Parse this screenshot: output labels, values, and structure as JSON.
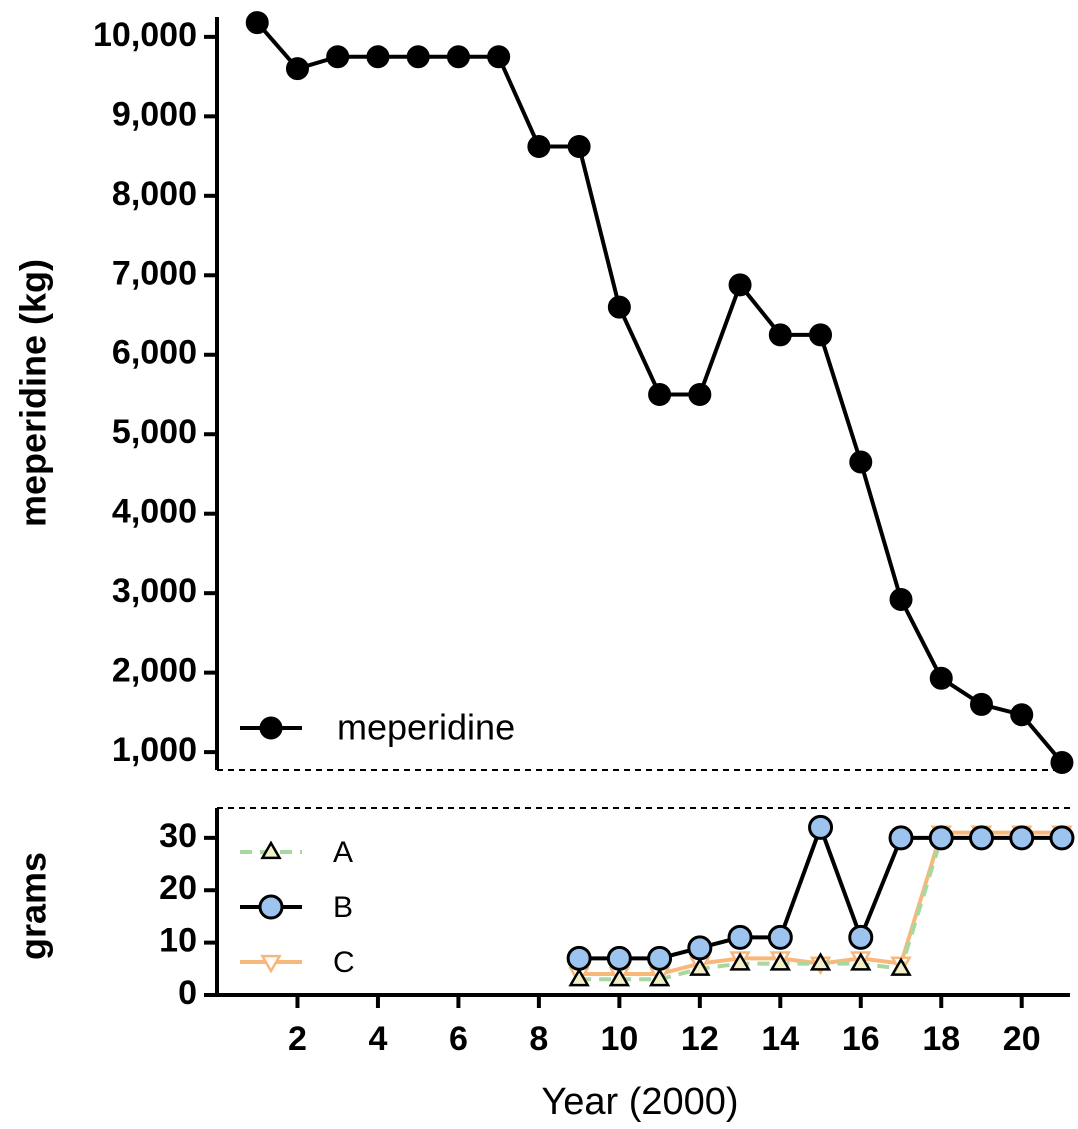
{
  "chart_data": [
    {
      "type": "line",
      "ylabel": "meperidine (kg)",
      "xlim": [
        0,
        21.2
      ],
      "ylim": [
        775,
        10250
      ],
      "yticks": [
        {
          "value": 1000,
          "label": "1,000"
        },
        {
          "value": 2000,
          "label": "2,000"
        },
        {
          "value": 3000,
          "label": "3,000"
        },
        {
          "value": 4000,
          "label": "4,000"
        },
        {
          "value": 5000,
          "label": "5,000"
        },
        {
          "value": 6000,
          "label": "6,000"
        },
        {
          "value": 7000,
          "label": "7,000"
        },
        {
          "value": 8000,
          "label": "8,000"
        },
        {
          "value": 9000,
          "label": "9,000"
        },
        {
          "value": 10000,
          "label": "10,000"
        }
      ],
      "legend": "lower left",
      "series": [
        {
          "name": "meperidine",
          "color": "#000000",
          "marker": "circle",
          "marker_color": "#000000",
          "line_style": "solid",
          "x": [
            1,
            2,
            3,
            4,
            5,
            6,
            7,
            8,
            9,
            10,
            11,
            12,
            13,
            14,
            15,
            16,
            17,
            18,
            19,
            20,
            21
          ],
          "values": [
            10180,
            9600,
            9750,
            9750,
            9750,
            9750,
            9750,
            8620,
            8620,
            6600,
            5500,
            5500,
            6880,
            6250,
            6250,
            4650,
            2920,
            1930,
            1600,
            1470,
            870
          ]
        }
      ]
    },
    {
      "type": "line",
      "ylabel": "grams",
      "xlabel": "Year (2000)",
      "xlim": [
        0,
        21.2
      ],
      "ylim": [
        0,
        35.7
      ],
      "xticks": [
        2,
        4,
        6,
        8,
        10,
        12,
        14,
        16,
        18,
        20
      ],
      "yticks": [
        0,
        10,
        20,
        30
      ],
      "legend": "upper left",
      "series": [
        {
          "name": "A",
          "color": "#a8d8a0",
          "marker": "triangle",
          "marker_color": "#f3f0c8",
          "line_style": "dashed",
          "x": [
            9,
            10,
            11,
            12,
            13,
            14,
            15,
            16,
            17,
            18,
            19,
            20,
            21
          ],
          "values": [
            3,
            3,
            3,
            5,
            6,
            6,
            6,
            6,
            5,
            30,
            30,
            30,
            30
          ]
        },
        {
          "name": "B",
          "color": "#000000",
          "marker": "circle",
          "marker_color": "#9dc3ef",
          "line_style": "solid",
          "x": [
            9,
            10,
            11,
            12,
            13,
            14,
            15,
            16,
            17,
            18,
            19,
            20,
            21
          ],
          "values": [
            7,
            7,
            7,
            9,
            11,
            11,
            32,
            11,
            30,
            30,
            30,
            30,
            30
          ]
        },
        {
          "name": "C",
          "color": "#f8b87c",
          "marker": "triangle-down",
          "marker_color": "#ffffff",
          "line_style": "solid",
          "x": [
            9,
            10,
            11,
            12,
            13,
            14,
            15,
            16,
            17,
            18,
            19,
            20,
            21
          ],
          "values": [
            4,
            4,
            4,
            6,
            7,
            7,
            6,
            7,
            6,
            31,
            31,
            31,
            31
          ]
        }
      ]
    }
  ]
}
